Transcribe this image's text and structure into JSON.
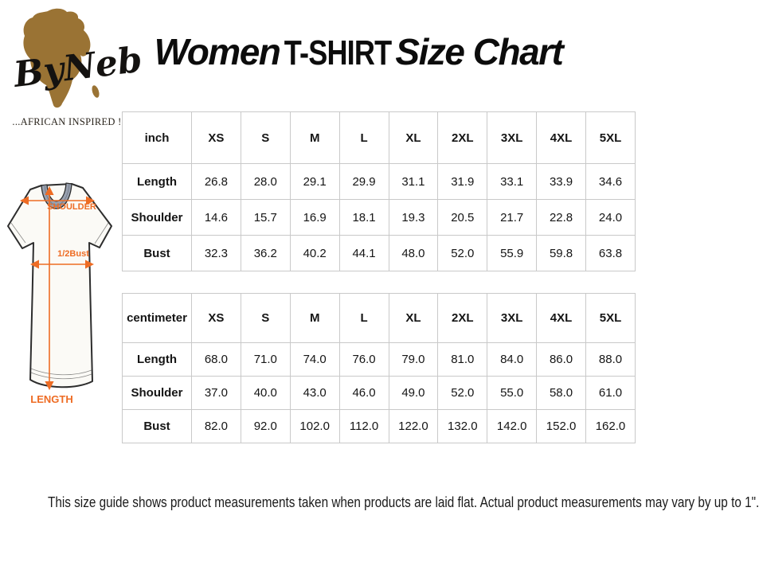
{
  "logo": {
    "brand": "ByNeb",
    "tagline": "...AFRICAN INSPIRED !",
    "africa_color": "#9a7334"
  },
  "title": {
    "part1": "Women",
    "part2": "T-SHIRT",
    "part3": "Size Chart"
  },
  "diagram": {
    "shoulder_label": "SHOULDER",
    "bust_label": "1/2Bust",
    "length_label": "LENGTH",
    "arrow_color": "#ee6c24",
    "collar_color": "#99a1b0"
  },
  "chart_data": [
    {
      "type": "table",
      "unit": "inch",
      "columns": [
        "XS",
        "S",
        "M",
        "L",
        "XL",
        "2XL",
        "3XL",
        "4XL",
        "5XL"
      ],
      "rows": [
        {
          "label": "Length",
          "values": [
            "26.8",
            "28.0",
            "29.1",
            "29.9",
            "31.1",
            "31.9",
            "33.1",
            "33.9",
            "34.6"
          ]
        },
        {
          "label": "Shoulder",
          "values": [
            "14.6",
            "15.7",
            "16.9",
            "18.1",
            "19.3",
            "20.5",
            "21.7",
            "22.8",
            "24.0"
          ]
        },
        {
          "label": "Bust",
          "values": [
            "32.3",
            "36.2",
            "40.2",
            "44.1",
            "48.0",
            "52.0",
            "55.9",
            "59.8",
            "63.8"
          ]
        }
      ]
    },
    {
      "type": "table",
      "unit": "centimeter",
      "columns": [
        "XS",
        "S",
        "M",
        "L",
        "XL",
        "2XL",
        "3XL",
        "4XL",
        "5XL"
      ],
      "rows": [
        {
          "label": "Length",
          "values": [
            "68.0",
            "71.0",
            "74.0",
            "76.0",
            "79.0",
            "81.0",
            "84.0",
            "86.0",
            "88.0"
          ]
        },
        {
          "label": "Shoulder",
          "values": [
            "37.0",
            "40.0",
            "43.0",
            "46.0",
            "49.0",
            "52.0",
            "55.0",
            "58.0",
            "61.0"
          ]
        },
        {
          "label": "Bust",
          "values": [
            "82.0",
            "92.0",
            "102.0",
            "112.0",
            "122.0",
            "132.0",
            "142.0",
            "152.0",
            "162.0"
          ]
        }
      ]
    }
  ],
  "footer": {
    "note": "This size guide shows product measurements taken when products are laid flat. Actual product measurements may vary by up to 1\"."
  }
}
